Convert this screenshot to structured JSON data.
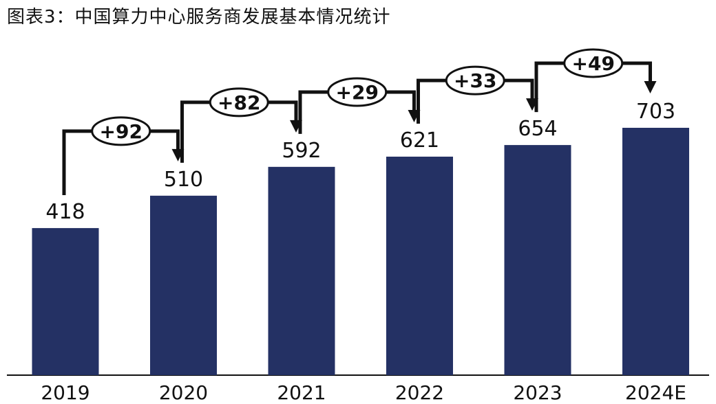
{
  "title": "图表3：中国算力中心服务商发展基本情况统计",
  "chart_data": {
    "type": "bar",
    "categories": [
      "2019",
      "2020",
      "2021",
      "2022",
      "2023",
      "2024E"
    ],
    "values": [
      418,
      510,
      592,
      621,
      654,
      703
    ],
    "value_labels": [
      "418",
      "510",
      "592",
      "621",
      "654",
      "703"
    ],
    "changes": [
      "+92",
      "+82",
      "+29",
      "+33",
      "+49"
    ],
    "ylim": [
      0,
      703
    ],
    "bar_color": "#243164",
    "grid": false,
    "legend": "none"
  }
}
